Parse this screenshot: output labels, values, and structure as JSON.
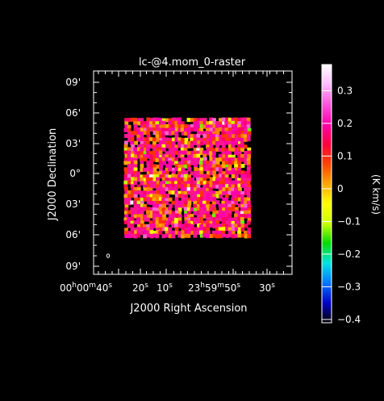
{
  "chart_data": {
    "type": "heatmap",
    "title": "lc-@4.mom_0-raster",
    "xlabel": "J2000 Right Ascension",
    "ylabel": "J2000 Declination",
    "x_ticks": [
      {
        "label_parts": [
          "00",
          "h",
          "00",
          "m",
          "40",
          "s"
        ]
      },
      {
        "label_parts": [
          "20",
          "s"
        ]
      },
      {
        "label_parts": [
          "10",
          "s"
        ]
      },
      {
        "label_parts": [
          "23",
          "h",
          "59",
          "m",
          "50",
          "s"
        ]
      },
      {
        "label_parts": [
          "30",
          "s"
        ]
      }
    ],
    "y_ticks": [
      "09'",
      "06'",
      "03'",
      "0°",
      "03'",
      "06'",
      "09'"
    ],
    "colorbar": {
      "label": "(K km/s)",
      "ticks": [
        "0.3",
        "0.2",
        "0.1",
        "0",
        "−0.1",
        "−0.2",
        "−0.3",
        "−0.4"
      ],
      "tick_values": [
        0.3,
        0.2,
        0.1,
        0,
        -0.1,
        -0.2,
        -0.3,
        -0.4
      ],
      "range": [
        -0.41,
        0.38
      ],
      "gradient": [
        "#000000",
        "#0000cc",
        "#0077ff",
        "#00e5e5",
        "#00dd00",
        "#ccff00",
        "#ffff00",
        "#ffa500",
        "#ff4400",
        "#ff0040",
        "#ff00aa",
        "#ff55dd",
        "#ffbbff",
        "#ffffff"
      ]
    },
    "map_extent": {
      "grid_cols": 40,
      "grid_rows": 36
    },
    "palette": [
      "#ff1493",
      "#ff00aa",
      "#ff0066",
      "#ff3300",
      "#ff7f00",
      "#ffa500",
      "#ff66cc",
      "#ffff00",
      "#ccff00",
      "#66ff00",
      "#ffffff"
    ],
    "colors": {
      "background": "#000000",
      "frame": "#ffffff"
    }
  }
}
